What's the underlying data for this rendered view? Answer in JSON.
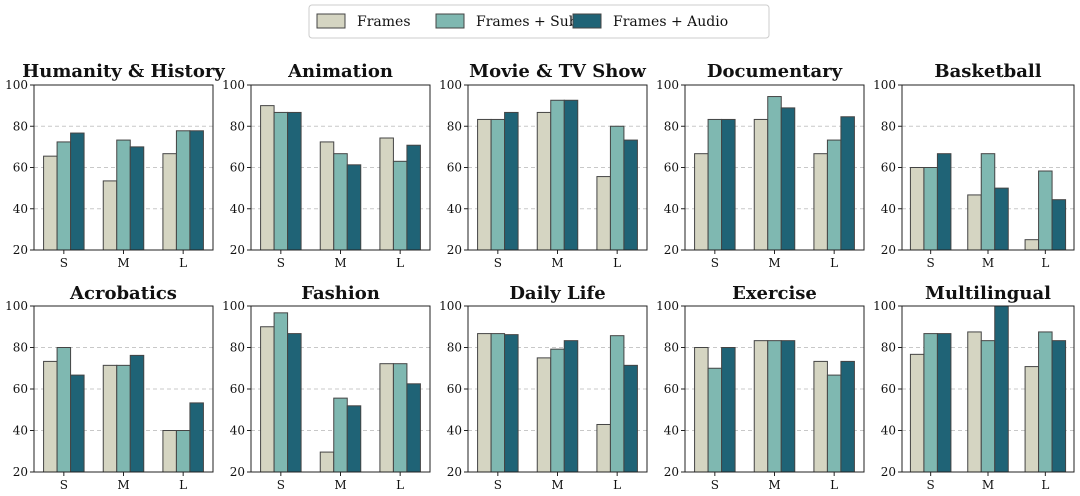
{
  "chart_data": {
    "type": "bar",
    "legend": {
      "position": "top-center",
      "series": [
        "Frames",
        "Frames + Subs",
        "Frames + Audio"
      ]
    },
    "series_colors": [
      "#d5d5c2",
      "#7fb8b1",
      "#1f6376"
    ],
    "categories": [
      "S",
      "M",
      "L"
    ],
    "ylim": [
      20,
      100
    ],
    "yticks": [
      20,
      40,
      60,
      80,
      100
    ],
    "grid": true,
    "panels": [
      {
        "title": "Humanity & History",
        "series": [
          {
            "name": "Frames",
            "values": [
              65.5,
              53.5,
              66.7
            ]
          },
          {
            "name": "Frames + Subs",
            "values": [
              72.4,
              73.3,
              77.8
            ]
          },
          {
            "name": "Frames + Audio",
            "values": [
              76.7,
              70.0,
              77.8
            ]
          }
        ]
      },
      {
        "title": "Animation",
        "series": [
          {
            "name": "Frames",
            "values": [
              90.0,
              72.4,
              74.3
            ]
          },
          {
            "name": "Frames + Subs",
            "values": [
              86.7,
              66.7,
              63.0
            ]
          },
          {
            "name": "Frames + Audio",
            "values": [
              86.7,
              61.3,
              70.8
            ]
          }
        ]
      },
      {
        "title": "Movie & TV Show",
        "series": [
          {
            "name": "Frames",
            "values": [
              83.3,
              86.7,
              55.6
            ]
          },
          {
            "name": "Frames + Subs",
            "values": [
              83.3,
              92.6,
              80.0
            ]
          },
          {
            "name": "Frames + Audio",
            "values": [
              86.7,
              92.6,
              73.3
            ]
          }
        ]
      },
      {
        "title": "Documentary",
        "series": [
          {
            "name": "Frames",
            "values": [
              66.7,
              83.3,
              66.7
            ]
          },
          {
            "name": "Frames + Subs",
            "values": [
              83.3,
              94.4,
              73.3
            ]
          },
          {
            "name": "Frames + Audio",
            "values": [
              83.3,
              88.9,
              84.6
            ]
          }
        ]
      },
      {
        "title": "Basketball",
        "series": [
          {
            "name": "Frames",
            "values": [
              60.0,
              46.7,
              25.0
            ]
          },
          {
            "name": "Frames + Subs",
            "values": [
              60.0,
              66.7,
              58.3
            ]
          },
          {
            "name": "Frames + Audio",
            "values": [
              66.7,
              50.0,
              44.4
            ]
          }
        ]
      },
      {
        "title": "Acrobatics",
        "series": [
          {
            "name": "Frames",
            "values": [
              73.3,
              71.4,
              40.0
            ]
          },
          {
            "name": "Frames + Subs",
            "values": [
              80.0,
              71.4,
              40.0
            ]
          },
          {
            "name": "Frames + Audio",
            "values": [
              66.7,
              76.2,
              53.3
            ]
          }
        ]
      },
      {
        "title": "Fashion",
        "series": [
          {
            "name": "Frames",
            "values": [
              90.0,
              29.6,
              72.2
            ]
          },
          {
            "name": "Frames + Subs",
            "values": [
              96.7,
              55.6,
              72.2
            ]
          },
          {
            "name": "Frames + Audio",
            "values": [
              86.7,
              51.9,
              62.5
            ]
          }
        ]
      },
      {
        "title": "Daily Life",
        "series": [
          {
            "name": "Frames",
            "values": [
              86.7,
              75.0,
              42.9
            ]
          },
          {
            "name": "Frames + Subs",
            "values": [
              86.7,
              79.2,
              85.7
            ]
          },
          {
            "name": "Frames + Audio",
            "values": [
              86.2,
              83.3,
              71.4
            ]
          }
        ]
      },
      {
        "title": "Exercise",
        "series": [
          {
            "name": "Frames",
            "values": [
              80.0,
              83.3,
              73.3
            ]
          },
          {
            "name": "Frames + Subs",
            "values": [
              70.0,
              83.3,
              66.7
            ]
          },
          {
            "name": "Frames + Audio",
            "values": [
              80.0,
              83.3,
              73.3
            ]
          }
        ]
      },
      {
        "title": "Multilingual",
        "series": [
          {
            "name": "Frames",
            "values": [
              76.7,
              87.5,
              70.8
            ]
          },
          {
            "name": "Frames + Subs",
            "values": [
              86.7,
              83.3,
              87.5
            ]
          },
          {
            "name": "Frames + Audio",
            "values": [
              86.7,
              100.0,
              83.3
            ]
          }
        ]
      }
    ]
  }
}
